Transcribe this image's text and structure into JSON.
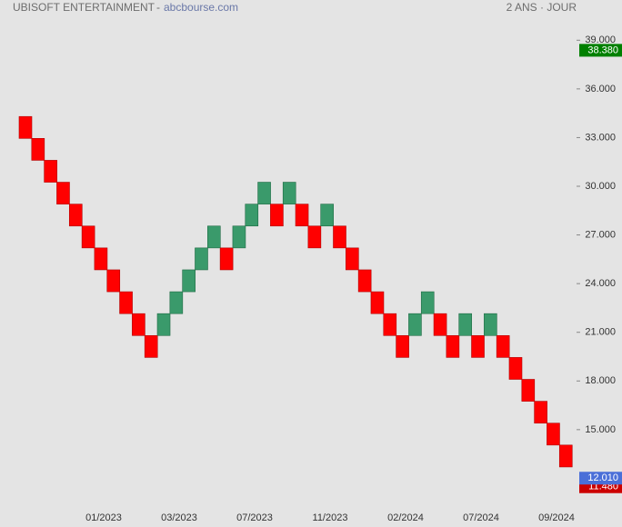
{
  "chart_data": {
    "type": "renko",
    "title": "UBISOFT ENTERTAINMENT",
    "source": "abcbourse.com",
    "period": "2 ANS · JOUR",
    "up_color": "#3a9a6b",
    "down_color": "#ff0000",
    "ylim": [
      10.4,
      39.8
    ],
    "yticks": [
      {
        "value": 39,
        "label": "39.000"
      },
      {
        "value": 36,
        "label": "36.000"
      },
      {
        "value": 33,
        "label": "33.000"
      },
      {
        "value": 30,
        "label": "30.000"
      },
      {
        "value": 27,
        "label": "27.000"
      },
      {
        "value": 24,
        "label": "24.000"
      },
      {
        "value": 21,
        "label": "21.000"
      },
      {
        "value": 18,
        "label": "18.000"
      },
      {
        "value": 15,
        "label": "15.000"
      }
    ],
    "x_labels": [
      "01/2023",
      "03/2023",
      "07/2023",
      "11/2023",
      "02/2024",
      "07/2024",
      "09/2024"
    ],
    "bricks": [
      {
        "open": 34.3,
        "close": 32.95
      },
      {
        "open": 32.95,
        "close": 31.6
      },
      {
        "open": 31.6,
        "close": 30.25
      },
      {
        "open": 30.25,
        "close": 28.9
      },
      {
        "open": 28.9,
        "close": 27.55
      },
      {
        "open": 27.55,
        "close": 26.2
      },
      {
        "open": 26.2,
        "close": 24.85
      },
      {
        "open": 24.85,
        "close": 23.5
      },
      {
        "open": 23.5,
        "close": 22.15
      },
      {
        "open": 22.15,
        "close": 20.8
      },
      {
        "open": 20.8,
        "close": 19.45
      },
      {
        "open": 20.8,
        "close": 22.15
      },
      {
        "open": 22.15,
        "close": 23.5
      },
      {
        "open": 23.5,
        "close": 24.85
      },
      {
        "open": 24.85,
        "close": 26.2
      },
      {
        "open": 26.2,
        "close": 27.55
      },
      {
        "open": 26.2,
        "close": 24.85
      },
      {
        "open": 26.2,
        "close": 27.55
      },
      {
        "open": 27.55,
        "close": 28.9
      },
      {
        "open": 28.9,
        "close": 30.25
      },
      {
        "open": 28.9,
        "close": 27.55
      },
      {
        "open": 28.9,
        "close": 30.25
      },
      {
        "open": 28.9,
        "close": 27.55
      },
      {
        "open": 27.55,
        "close": 26.2
      },
      {
        "open": 27.55,
        "close": 28.9
      },
      {
        "open": 27.55,
        "close": 26.2
      },
      {
        "open": 26.2,
        "close": 24.85
      },
      {
        "open": 24.85,
        "close": 23.5
      },
      {
        "open": 23.5,
        "close": 22.15
      },
      {
        "open": 22.15,
        "close": 20.8
      },
      {
        "open": 20.8,
        "close": 19.45
      },
      {
        "open": 20.8,
        "close": 22.15
      },
      {
        "open": 22.15,
        "close": 23.5
      },
      {
        "open": 22.15,
        "close": 20.8
      },
      {
        "open": 20.8,
        "close": 19.45
      },
      {
        "open": 20.8,
        "close": 22.15
      },
      {
        "open": 20.8,
        "close": 19.45
      },
      {
        "open": 20.8,
        "close": 22.15
      },
      {
        "open": 20.8,
        "close": 19.45
      },
      {
        "open": 19.45,
        "close": 18.1
      },
      {
        "open": 18.1,
        "close": 16.75
      },
      {
        "open": 16.75,
        "close": 15.4
      },
      {
        "open": 15.4,
        "close": 14.05
      },
      {
        "open": 14.05,
        "close": 12.7
      }
    ],
    "price_markers": [
      {
        "value": 38.38,
        "label": "38.380",
        "color": "#008000"
      },
      {
        "value": 11.48,
        "label": "11.480",
        "color": "#cc0000"
      },
      {
        "value": 12.01,
        "label": "12.010",
        "color": "#4a6fd8"
      }
    ]
  }
}
